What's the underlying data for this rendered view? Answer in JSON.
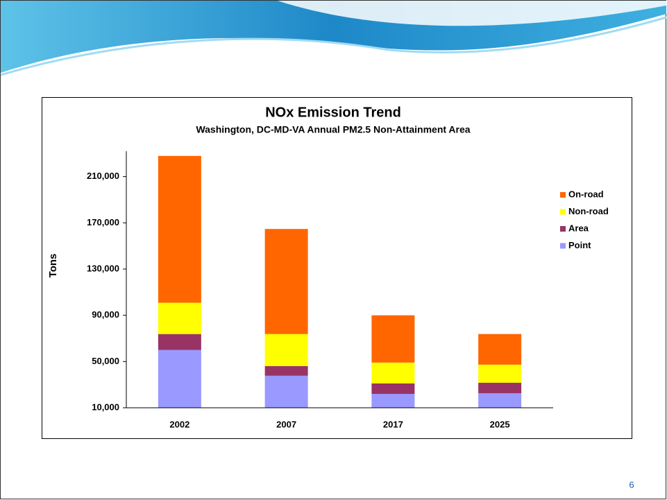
{
  "chart_data": {
    "type": "stacked-bar",
    "title": "NOx Emission Trend",
    "subtitle": "Washington, DC-MD-VA Annual PM2.5 Non-Attainment Area",
    "y_label": "Tons",
    "categories": [
      "2002",
      "2007",
      "2017",
      "2025"
    ],
    "series": [
      {
        "name": "Point",
        "color": "#9999ff",
        "values": [
          60000,
          37700,
          22000,
          22600
        ]
      },
      {
        "name": "Area",
        "color": "#993366",
        "values": [
          13800,
          8400,
          9100,
          9100
        ]
      },
      {
        "name": "Non-road",
        "color": "#ffff00",
        "values": [
          27100,
          27700,
          18000,
          15600
        ]
      },
      {
        "name": "On-road",
        "color": "#ff6600",
        "values": [
          127000,
          90900,
          40900,
          26500
        ]
      }
    ],
    "ylim": [
      10000,
      232000
    ],
    "yticks": [
      {
        "value": 10000,
        "label": "10,000"
      },
      {
        "value": 50000,
        "label": "50,000"
      },
      {
        "value": 90000,
        "label": "90,000"
      },
      {
        "value": 130000,
        "label": "130,000"
      },
      {
        "value": 170000,
        "label": "170,000"
      },
      {
        "value": 210000,
        "label": "210,000"
      }
    ],
    "legend": "right",
    "grid": false
  },
  "slide_number": "6"
}
